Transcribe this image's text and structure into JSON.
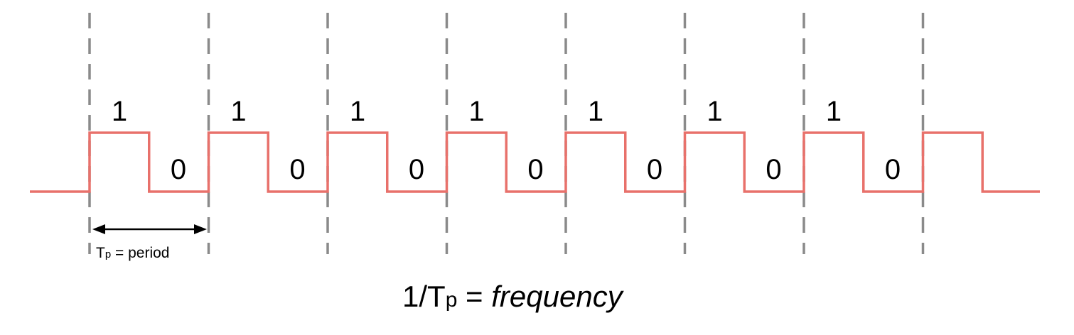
{
  "diagram": {
    "bit_high_label": "1",
    "bit_low_label": "0",
    "cycles_labeled": 7,
    "period_label": {
      "symbol": "T",
      "subscript": "p",
      "text": " = period"
    },
    "caption": {
      "prefix": "1/T",
      "subscript": "p",
      "equals": " = ",
      "word": "frequency"
    },
    "colors": {
      "signal": "#e8716b",
      "guides": "#8a8a8a",
      "text": "#000000"
    }
  }
}
